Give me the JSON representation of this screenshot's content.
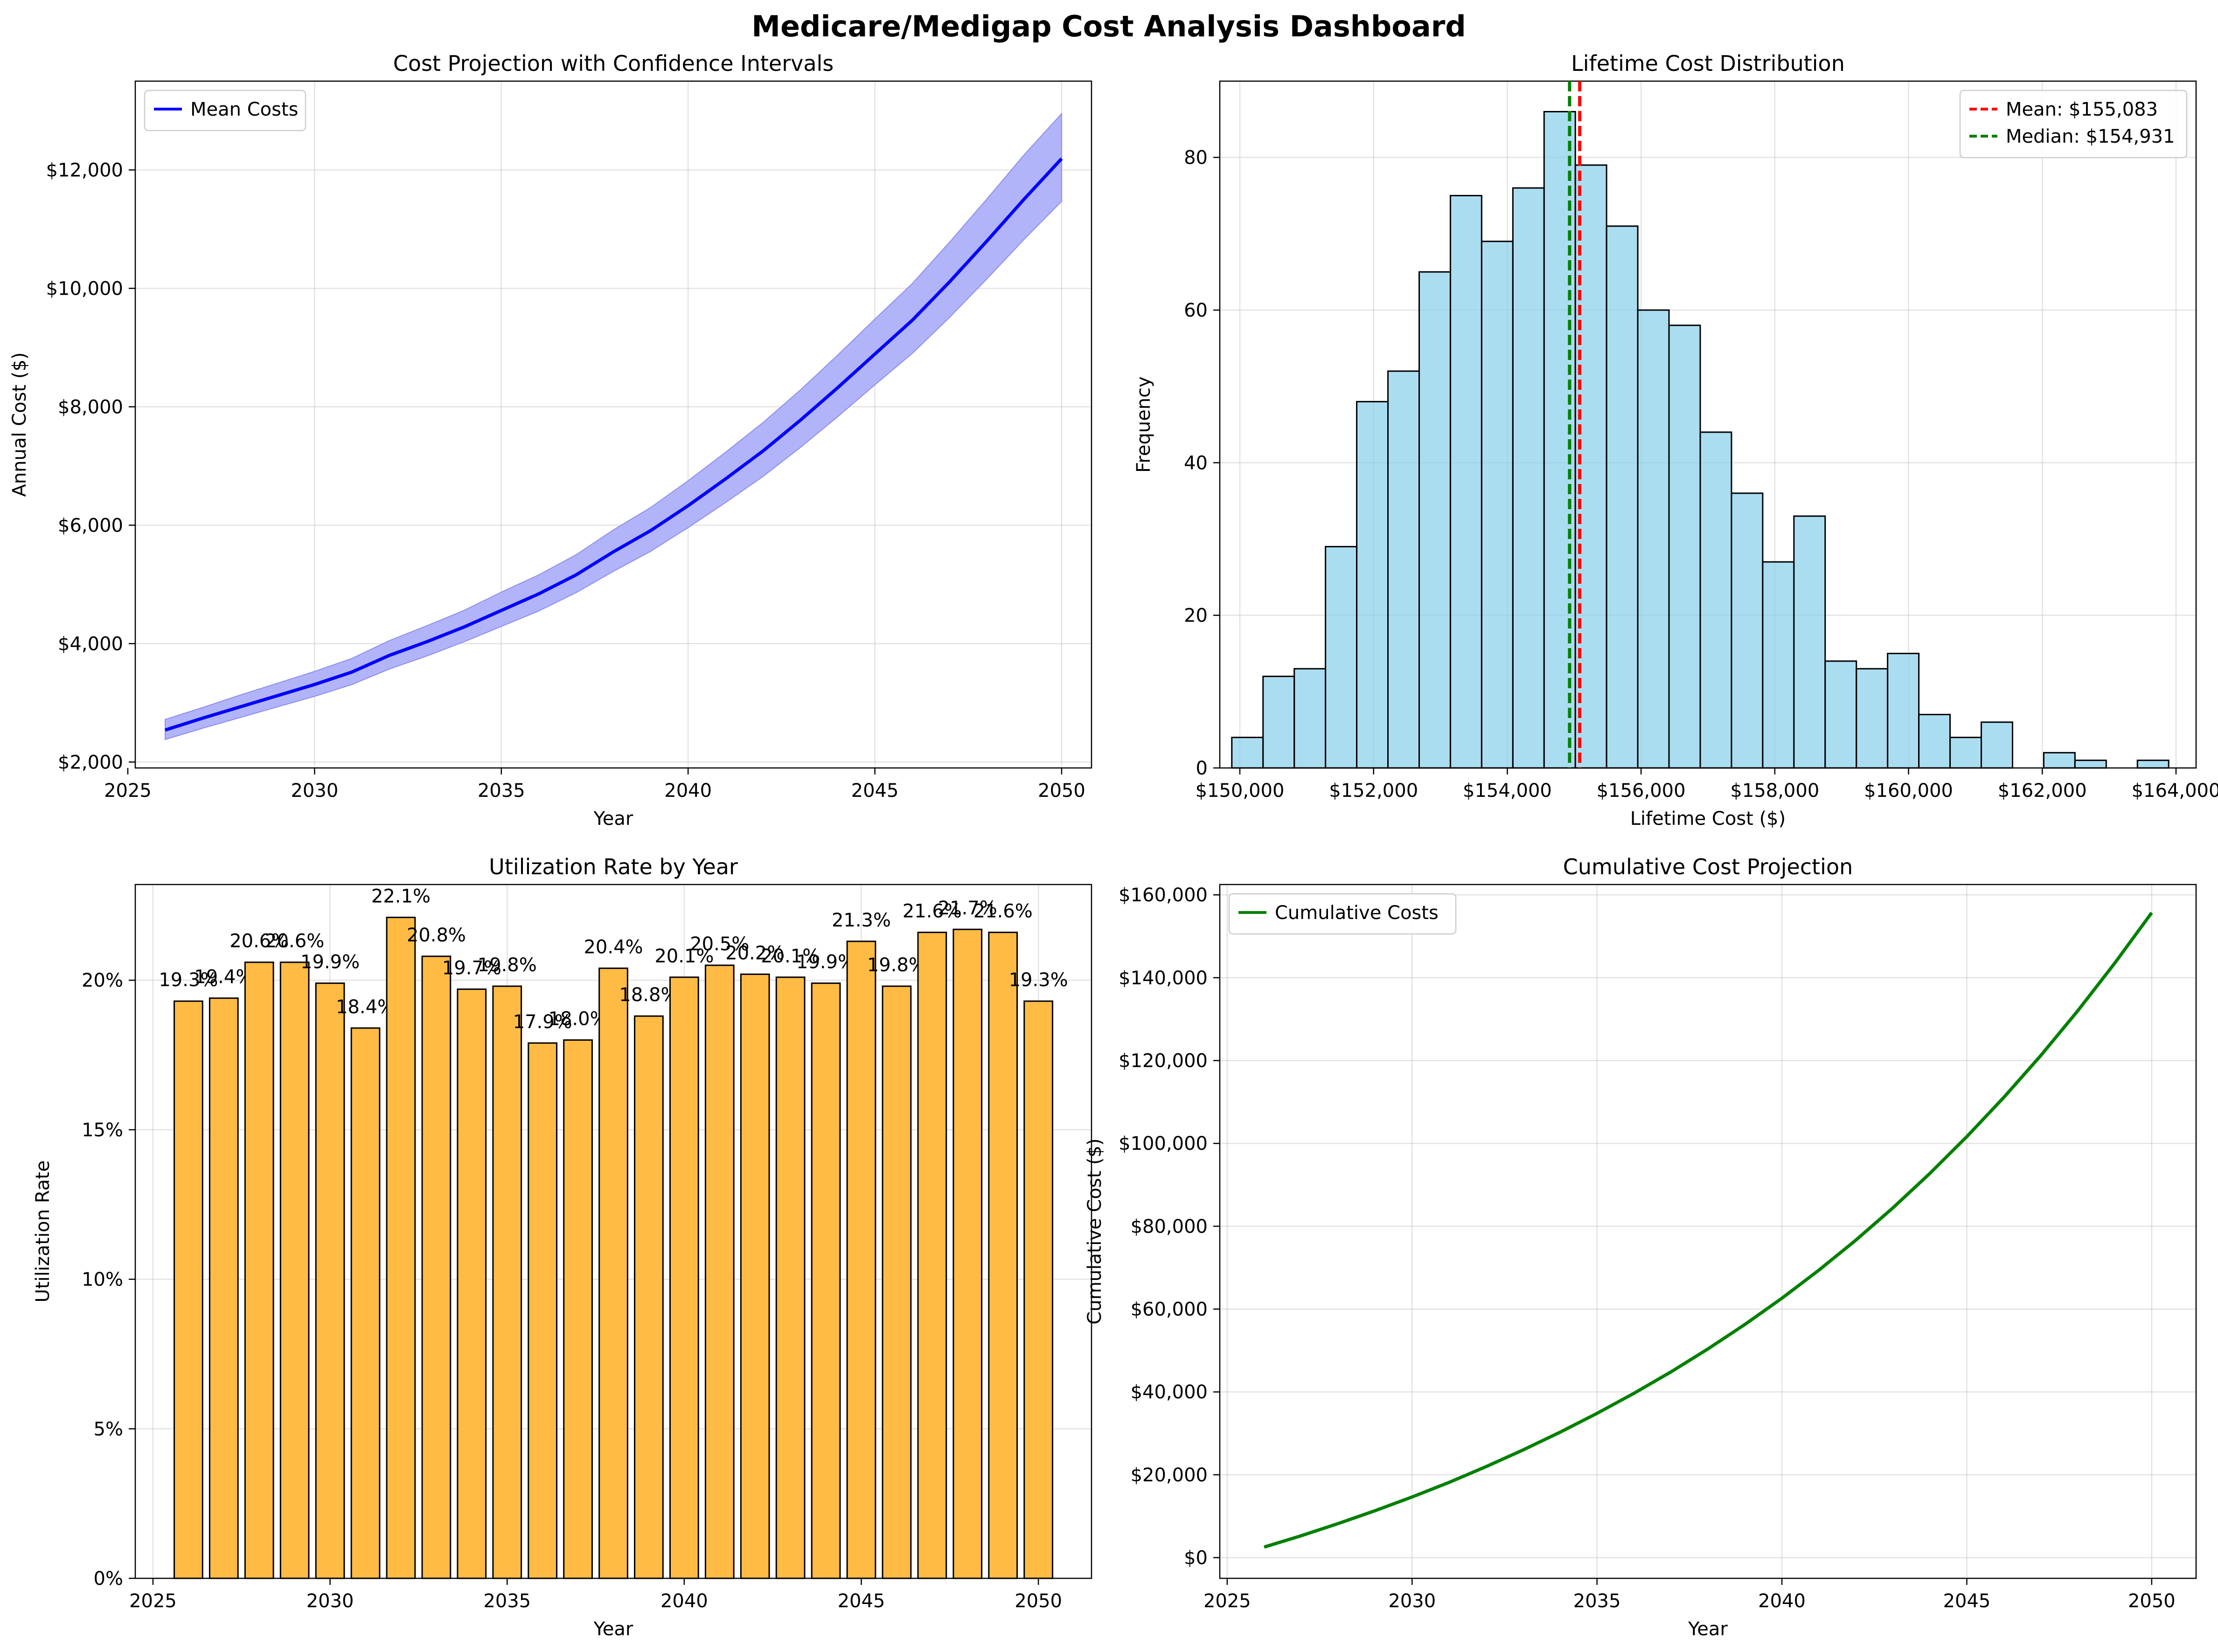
{
  "page": {
    "title": "Medicare/Medigap Cost Analysis Dashboard"
  },
  "chart_data": [
    {
      "id": "cost-projection",
      "type": "area",
      "title": "Cost Projection with Confidence Intervals",
      "xlabel": "Year",
      "ylabel": "Annual Cost ($)",
      "xlim": [
        2025.2,
        2050.8
      ],
      "ylim": [
        1900,
        13500
      ],
      "x_ticks": [
        2025,
        2030,
        2035,
        2040,
        2045,
        2050
      ],
      "y_ticks": [
        2000,
        4000,
        6000,
        8000,
        10000,
        12000
      ],
      "y_tick_labels": [
        "$2,000",
        "$4,000",
        "$6,000",
        "$8,000",
        "$10,000",
        "$12,000"
      ],
      "grid": true,
      "legend": {
        "position": "top-left",
        "entries": [
          "Mean Costs"
        ]
      },
      "colors": {
        "line": "#0000ff",
        "band": "#aeb0fa",
        "band_edge": "#8a8cf0"
      },
      "x": [
        2026,
        2027,
        2028,
        2029,
        2030,
        2031,
        2032,
        2033,
        2034,
        2035,
        2036,
        2037,
        2038,
        2039,
        2040,
        2041,
        2042,
        2043,
        2044,
        2045,
        2046,
        2047,
        2048,
        2049,
        2050
      ],
      "series": [
        {
          "name": "Mean Costs",
          "values": [
            2540,
            2740,
            2930,
            3120,
            3310,
            3520,
            3800,
            4030,
            4280,
            4560,
            4840,
            5160,
            5550,
            5910,
            6330,
            6780,
            7250,
            7770,
            8320,
            8890,
            9460,
            10110,
            10800,
            11510,
            12190
          ]
        },
        {
          "name": "lower",
          "values": [
            2380,
            2570,
            2750,
            2930,
            3110,
            3310,
            3570,
            3790,
            4030,
            4290,
            4550,
            4860,
            5220,
            5560,
            5960,
            6380,
            6820,
            7310,
            7830,
            8370,
            8900,
            9510,
            10160,
            10830,
            11470
          ]
        },
        {
          "name": "upper",
          "values": [
            2720,
            2920,
            3130,
            3330,
            3530,
            3750,
            4050,
            4300,
            4560,
            4870,
            5160,
            5500,
            5920,
            6300,
            6750,
            7230,
            7730,
            8280,
            8870,
            9480,
            10080,
            10780,
            11510,
            12260,
            12950
          ]
        }
      ]
    },
    {
      "id": "lifetime-distribution",
      "type": "bar",
      "title": "Lifetime Cost Distribution",
      "xlabel": "Lifetime Cost ($)",
      "ylabel": "Frequency",
      "xlim": [
        149700,
        164300
      ],
      "ylim": [
        0,
        90
      ],
      "x_ticks": [
        150000,
        152000,
        154000,
        156000,
        158000,
        160000,
        162000,
        164000
      ],
      "x_tick_labels": [
        "$150,000",
        "$152,000",
        "$154,000",
        "$156,000",
        "$158,000",
        "$160,000",
        "$162,000",
        "$164,000"
      ],
      "y_ticks": [
        0,
        20,
        40,
        60,
        80
      ],
      "grid": true,
      "legend": {
        "position": "top-right",
        "entries": [
          "Mean: $155,083",
          "Median: $154,931"
        ]
      },
      "colors": {
        "bar": "#87ceeb",
        "bar_edge": "#000000",
        "mean": "#ff0000",
        "median": "#008000"
      },
      "bin_start": 149880,
      "bin_width": 467,
      "counts": [
        4,
        12,
        13,
        29,
        48,
        52,
        65,
        75,
        69,
        76,
        86,
        79,
        71,
        60,
        58,
        44,
        36,
        27,
        33,
        14,
        13,
        15,
        7,
        4,
        6,
        0,
        2,
        1,
        0,
        1
      ],
      "mean": 155083,
      "median": 154931
    },
    {
      "id": "utilization",
      "type": "bar",
      "title": "Utilization Rate by Year",
      "xlabel": "Year",
      "ylabel": "Utilization Rate",
      "xlim": [
        2024.5,
        2051.5
      ],
      "ylim": [
        0,
        0.232
      ],
      "x_ticks": [
        2025,
        2030,
        2035,
        2040,
        2045,
        2050
      ],
      "y_ticks": [
        0,
        0.05,
        0.1,
        0.15,
        0.2
      ],
      "y_tick_labels": [
        "0%",
        "5%",
        "10%",
        "15%",
        "20%"
      ],
      "grid": true,
      "colors": {
        "bar": "#ffbb44",
        "bar_edge": "#000000"
      },
      "categories": [
        2026,
        2027,
        2028,
        2029,
        2030,
        2031,
        2032,
        2033,
        2034,
        2035,
        2036,
        2037,
        2038,
        2039,
        2040,
        2041,
        2042,
        2043,
        2044,
        2045,
        2046,
        2047,
        2048,
        2049,
        2050
      ],
      "values": [
        0.193,
        0.194,
        0.206,
        0.206,
        0.199,
        0.184,
        0.221,
        0.208,
        0.197,
        0.198,
        0.179,
        0.18,
        0.204,
        0.188,
        0.201,
        0.205,
        0.202,
        0.201,
        0.199,
        0.213,
        0.198,
        0.216,
        0.217,
        0.216,
        0.193
      ],
      "data_labels": [
        "19.3%",
        "19.4%",
        "20.6%",
        "20.6%",
        "19.9%",
        "18.4%",
        "22.1%",
        "20.8%",
        "19.7%",
        "19.8%",
        "17.9%",
        "18.0%",
        "20.4%",
        "18.8%",
        "20.1%",
        "20.5%",
        "20.2%",
        "20.1%",
        "19.9%",
        "21.3%",
        "19.8%",
        "21.6%",
        "21.7%",
        "21.6%",
        "19.3%"
      ]
    },
    {
      "id": "cumulative",
      "type": "line",
      "title": "Cumulative Cost Projection",
      "xlabel": "Year",
      "ylabel": "Cumulative Cost ($)",
      "xlim": [
        2024.8,
        2051.2
      ],
      "ylim": [
        -5000,
        162500
      ],
      "x_ticks": [
        2025,
        2030,
        2035,
        2040,
        2045,
        2050
      ],
      "y_ticks": [
        0,
        20000,
        40000,
        60000,
        80000,
        100000,
        120000,
        140000,
        160000
      ],
      "y_tick_labels": [
        "$0",
        "$20,000",
        "$40,000",
        "$60,000",
        "$80,000",
        "$100,000",
        "$120,000",
        "$140,000",
        "$160,000"
      ],
      "grid": true,
      "legend": {
        "position": "top-left",
        "entries": [
          "Cumulative Costs"
        ]
      },
      "colors": {
        "line": "#008000"
      },
      "x": [
        2026,
        2027,
        2028,
        2029,
        2030,
        2031,
        2032,
        2033,
        2034,
        2035,
        2036,
        2037,
        2038,
        2039,
        2040,
        2041,
        2042,
        2043,
        2044,
        2045,
        2046,
        2047,
        2048,
        2049,
        2050
      ],
      "series": [
        {
          "name": "Cumulative Costs",
          "values": [
            2540,
            5280,
            8210,
            11330,
            14640,
            18160,
            21960,
            25990,
            30270,
            34830,
            39670,
            44830,
            50380,
            56290,
            62620,
            69400,
            76650,
            84420,
            92740,
            101630,
            111090,
            121200,
            132000,
            143510,
            155700
          ]
        }
      ]
    }
  ]
}
